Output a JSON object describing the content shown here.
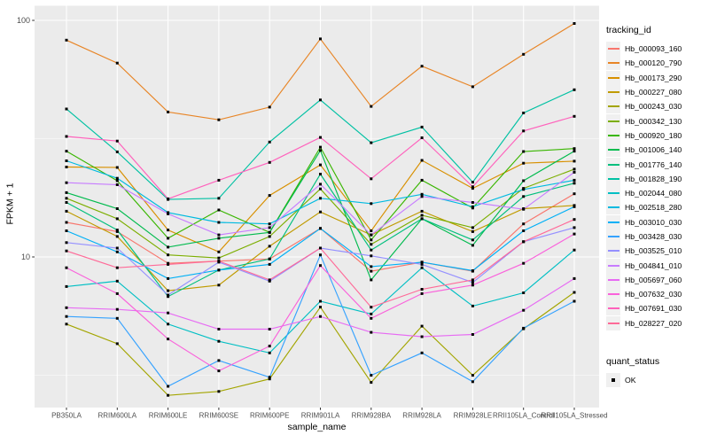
{
  "figure": {
    "background": "#FFFFFF",
    "panel_background": "#EBEBEB",
    "grid_color": "#FFFFFF",
    "tick_color": "#333333",
    "tick_text_color": "#4D4D4D",
    "point_color": "#000000"
  },
  "axes": {
    "x_title": "sample_name",
    "y_title": "FPKM + 1",
    "y_scale": "log10",
    "y_breaks": [
      100,
      10
    ],
    "y_break_labels": [
      "100",
      "10"
    ],
    "y_minor_breaks": [
      31.623,
      3.1623
    ]
  },
  "legend": {
    "tracking_title": "tracking_id",
    "quant_title": "quant_status",
    "quant_items": [
      {
        "label": "OK",
        "shape": "black-square"
      }
    ],
    "key_fill": "#F0F0F0"
  },
  "chart_data": {
    "type": "line",
    "title": "",
    "xlabel": "sample_name",
    "ylabel": "FPKM + 1",
    "y_scale": "log10",
    "ylim": [
      2.3,
      115
    ],
    "grid": true,
    "legend_position": "right",
    "point_marker": "black-square",
    "categories": [
      "PB350LA",
      "RRIM600LA",
      "RRIM600LE",
      "RRIM600SE",
      "RRIM600PE",
      "RRIM901LA",
      "RRIM928BA",
      "RRIM928LA",
      "RRIM928LE",
      "RRII105LA_Control",
      "RRII105LA_Stressed"
    ],
    "series": [
      {
        "name": "Hb_000093_160",
        "color": "#F8766D",
        "values": [
          14.0,
          12.8,
          9.4,
          9.6,
          9.8,
          13.2,
          8.7,
          9.5,
          8.7,
          13.8,
          18.5
        ]
      },
      {
        "name": "Hb_000120_790",
        "color": "#E88526",
        "values": [
          82.5,
          66.0,
          41.0,
          38.0,
          43.0,
          83.5,
          43.3,
          64.0,
          52.4,
          71.9,
          97.0
        ]
      },
      {
        "name": "Hb_000173_290",
        "color": "#D89000",
        "values": [
          24.0,
          23.9,
          13.0,
          10.5,
          18.2,
          24.5,
          12.9,
          25.6,
          19.5,
          24.9,
          25.4
        ]
      },
      {
        "name": "Hb_000227_080",
        "color": "#C09B00",
        "values": [
          15.6,
          12.2,
          7.2,
          7.6,
          11.1,
          15.5,
          12.4,
          15.6,
          12.8,
          16.0,
          16.5
        ]
      },
      {
        "name": "Hb_000243_030",
        "color": "#A3A500",
        "values": [
          5.2,
          4.3,
          2.6,
          2.7,
          3.05,
          6.14,
          2.95,
          5.1,
          3.16,
          4.97,
          7.08
        ]
      },
      {
        "name": "Hb_000342_130",
        "color": "#7CAE00",
        "values": [
          17.7,
          14.5,
          10.2,
          9.9,
          12.2,
          19.4,
          11.3,
          15.0,
          13.3,
          19.5,
          23.5
        ]
      },
      {
        "name": "Hb_000920_180",
        "color": "#39B600",
        "values": [
          28.0,
          21.0,
          12.0,
          15.8,
          12.7,
          29.1,
          11.8,
          21.1,
          16.1,
          27.9,
          28.7
        ]
      },
      {
        "name": "Hb_001006_140",
        "color": "#00BB4E",
        "values": [
          18.7,
          16.0,
          11.0,
          12.0,
          12.7,
          28.2,
          8.0,
          14.5,
          11.2,
          21.0,
          28.0
        ]
      },
      {
        "name": "Hb_001776_140",
        "color": "#00BF7D",
        "values": [
          17.0,
          13.0,
          6.8,
          8.8,
          9.8,
          22.4,
          10.7,
          14.5,
          11.8,
          18.0,
          20.5
        ]
      },
      {
        "name": "Hb_001828_190",
        "color": "#00C1A3",
        "values": [
          42.2,
          27.8,
          17.5,
          17.7,
          30.6,
          46.1,
          30.4,
          35.4,
          20.7,
          40.6,
          50.9
        ]
      },
      {
        "name": "Hb_002044_080",
        "color": "#00BFC4",
        "values": [
          7.5,
          7.9,
          5.2,
          4.4,
          3.93,
          6.5,
          5.74,
          9.0,
          6.2,
          7.05,
          10.7
        ]
      },
      {
        "name": "Hb_002518_280",
        "color": "#00BAE0",
        "values": [
          25.5,
          21.5,
          15.4,
          14.0,
          13.8,
          17.7,
          16.8,
          18.4,
          16.3,
          19.3,
          21.1
        ]
      },
      {
        "name": "Hb_003010_030",
        "color": "#00B0F6",
        "values": [
          12.9,
          10.5,
          8.1,
          8.8,
          9.3,
          13.2,
          9.1,
          9.5,
          8.75,
          12.9,
          16.3
        ]
      },
      {
        "name": "Hb_003428_030",
        "color": "#35A2FF",
        "values": [
          5.6,
          5.5,
          2.84,
          3.65,
          3.1,
          10.2,
          3.16,
          3.93,
          2.97,
          5.0,
          6.5
        ]
      },
      {
        "name": "Hb_003525_010",
        "color": "#9590FF",
        "values": [
          11.5,
          10.9,
          6.9,
          9.5,
          7.9,
          10.9,
          10.1,
          9.3,
          7.8,
          11.6,
          13.3
        ]
      },
      {
        "name": "Hb_004841_010",
        "color": "#C77CFF",
        "values": [
          20.6,
          20.2,
          15.2,
          12.4,
          13.3,
          20.3,
          12.4,
          18.0,
          17.0,
          15.9,
          22.8
        ]
      },
      {
        "name": "Hb_005697_060",
        "color": "#E76BF3",
        "values": [
          6.1,
          6.0,
          5.8,
          4.95,
          4.95,
          5.6,
          4.8,
          4.6,
          4.7,
          5.95,
          8.1
        ]
      },
      {
        "name": "Hb_007632_030",
        "color": "#FA62DB",
        "values": [
          9.0,
          7.0,
          4.5,
          3.3,
          4.2,
          9.2,
          5.5,
          7.0,
          7.6,
          9.4,
          12.5
        ]
      },
      {
        "name": "Hb_007691_030",
        "color": "#FF62BC",
        "values": [
          32.3,
          30.9,
          17.6,
          21.1,
          25.1,
          32.0,
          21.4,
          31.9,
          19.8,
          34.1,
          39.3
        ]
      },
      {
        "name": "Hb_028227_020",
        "color": "#FF6A98",
        "values": [
          10.6,
          9.0,
          9.3,
          9.6,
          8.0,
          10.9,
          6.13,
          7.3,
          8.0,
          11.6,
          14.4
        ]
      }
    ]
  }
}
